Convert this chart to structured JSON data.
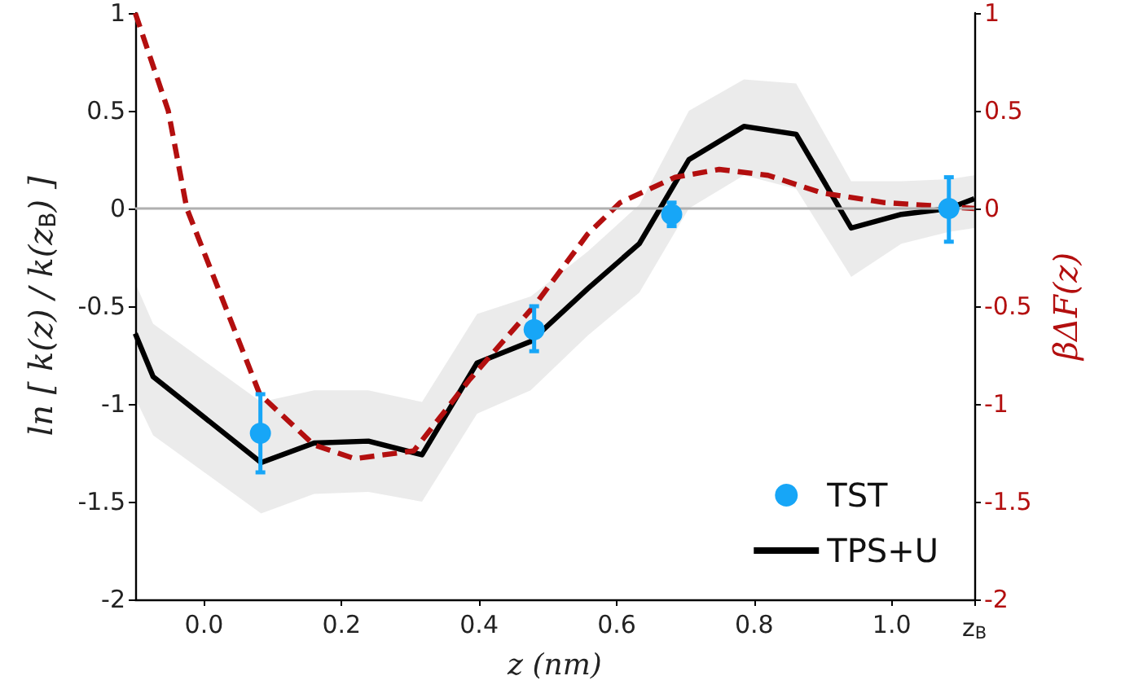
{
  "chart_data": {
    "type": "line",
    "xlabel": "z (nm)",
    "ylabel": "ln [ k(z) / k(z$_{B}$) ]",
    "y2label": "βΔF(z)",
    "xlim": [
      -0.1,
      1.12
    ],
    "xticks": [
      {
        "value": 0,
        "label": "0.0"
      },
      {
        "value": 0.2,
        "label": "0.2"
      },
      {
        "value": 0.4,
        "label": "0.4"
      },
      {
        "value": 0.6,
        "label": "0.6"
      },
      {
        "value": 0.8,
        "label": "0.8"
      },
      {
        "value": 1,
        "label": "1.0"
      },
      {
        "value": 1.12,
        "label": "z$_{B}$"
      }
    ],
    "ylim": [
      -2,
      1
    ],
    "yticks": [
      -2,
      -1.5,
      -1,
      -0.5,
      0,
      0.5,
      1
    ],
    "y2lim": [
      -2,
      1
    ],
    "y2ticks": [
      -2,
      -1.5,
      -1,
      -0.5,
      0,
      0.5,
      1
    ],
    "grid": false,
    "legend": "bottom right",
    "ref_lines": [
      {
        "axis": "y",
        "value": 0,
        "color": "#b0b0b0",
        "line_style": "solid"
      }
    ],
    "series": [
      {
        "name": "TPS+U",
        "color": "#000000",
        "marker": "none",
        "line_style": "solid",
        "x": [
          -0.1,
          -0.074,
          0.083,
          0.16,
          0.239,
          0.317,
          0.397,
          0.475,
          0.558,
          0.633,
          0.705,
          0.785,
          0.861,
          0.941,
          1.014,
          1.083,
          1.12
        ],
        "values": [
          -0.64,
          -0.86,
          -1.3,
          -1.2,
          -1.19,
          -1.26,
          -0.79,
          -0.68,
          -0.41,
          -0.18,
          0.25,
          0.42,
          0.38,
          -0.1,
          -0.03,
          0,
          0.05
        ],
        "lower": [
          -0.97,
          -1.16,
          -1.56,
          -1.46,
          -1.45,
          -1.5,
          -1.05,
          -0.93,
          -0.65,
          -0.43,
          0,
          0.17,
          0.1,
          -0.35,
          -0.18,
          -0.12,
          -0.1
        ],
        "upper": [
          -0.38,
          -0.59,
          -0.99,
          -0.93,
          -0.93,
          -0.99,
          -0.54,
          -0.45,
          -0.22,
          0.02,
          0.5,
          0.66,
          0.64,
          0.14,
          0.14,
          0.15,
          0.17
        ]
      },
      {
        "type": "line",
        "axis": "y2",
        "color": "#b30f0f",
        "marker": "none",
        "line_style": "dashed",
        "x": [
          -0.1,
          -0.052,
          -0.025,
          0.081,
          0.16,
          0.219,
          0.305,
          0.385,
          0.482,
          0.558,
          0.605,
          0.685,
          0.749,
          0.82,
          0.898,
          0.99,
          1.12
        ],
        "values": [
          1,
          0.5,
          0,
          -0.95,
          -1.21,
          -1.28,
          -1.24,
          -0.88,
          -0.49,
          -0.13,
          0.03,
          0.16,
          0.2,
          0.17,
          0.08,
          0.03,
          0
        ]
      },
      {
        "name": "TST",
        "type": "scatter",
        "color": "#17a6f7",
        "marker": "circle",
        "x": [
          0.082,
          0.48,
          0.68,
          1.083
        ],
        "values": [
          -1.15,
          -0.62,
          -0.03,
          0
        ],
        "errors": [
          [
            -1.35,
            -0.95
          ],
          [
            -0.73,
            -0.5
          ],
          [
            -0.09,
            0.03
          ],
          [
            -0.17,
            0.16
          ]
        ]
      }
    ]
  }
}
